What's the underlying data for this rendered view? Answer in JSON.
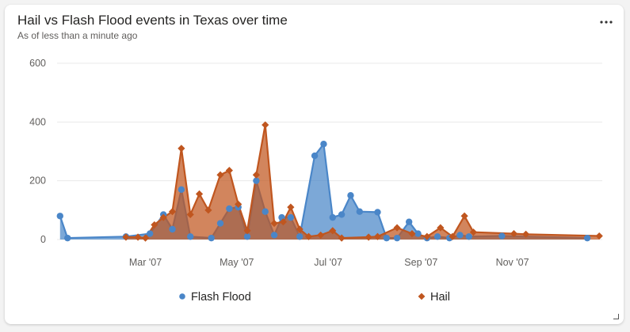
{
  "card": {
    "title": "Hail vs Flash Flood events in Texas over time",
    "subtitle": "As of less than a minute ago",
    "more_icon": "more-horizontal-icon",
    "resize_icon": "resize-handle-icon"
  },
  "chart_data": {
    "type": "area",
    "title": "Hail vs Flash Flood events in Texas over time",
    "xlabel": "",
    "ylabel": "",
    "ylim": [
      0,
      600
    ],
    "yticks": [
      "0",
      "200",
      "400",
      "600"
    ],
    "xlim": [
      "2007-01-01",
      "2007-12-31"
    ],
    "xticks": [
      {
        "label": "Mar '07",
        "date": "2007-03-01"
      },
      {
        "label": "May '07",
        "date": "2007-05-01"
      },
      {
        "label": "Jul '07",
        "date": "2007-07-01"
      },
      {
        "label": "Sep '07",
        "date": "2007-09-01"
      },
      {
        "label": "Nov '07",
        "date": "2007-11-01"
      }
    ],
    "grid": true,
    "legend_position": "bottom",
    "series": [
      {
        "name": "Flash Flood",
        "color": "#4a86c8",
        "marker": "circle",
        "points": [
          [
            "2007-01-03",
            80
          ],
          [
            "2007-01-08",
            5
          ],
          [
            "2007-02-16",
            10
          ],
          [
            "2007-03-04",
            20
          ],
          [
            "2007-03-13",
            85
          ],
          [
            "2007-03-19",
            35
          ],
          [
            "2007-03-25",
            170
          ],
          [
            "2007-03-31",
            10
          ],
          [
            "2007-04-14",
            5
          ],
          [
            "2007-04-20",
            55
          ],
          [
            "2007-04-26",
            105
          ],
          [
            "2007-05-02",
            110
          ],
          [
            "2007-05-08",
            10
          ],
          [
            "2007-05-14",
            200
          ],
          [
            "2007-05-20",
            95
          ],
          [
            "2007-05-26",
            15
          ],
          [
            "2007-05-31",
            75
          ],
          [
            "2007-06-06",
            75
          ],
          [
            "2007-06-12",
            10
          ],
          [
            "2007-06-22",
            285
          ],
          [
            "2007-06-28",
            325
          ],
          [
            "2007-07-04",
            75
          ],
          [
            "2007-07-10",
            85
          ],
          [
            "2007-07-16",
            150
          ],
          [
            "2007-07-22",
            95
          ],
          [
            "2007-08-03",
            93
          ],
          [
            "2007-08-09",
            5
          ],
          [
            "2007-08-16",
            5
          ],
          [
            "2007-08-24",
            60
          ],
          [
            "2007-08-30",
            20
          ],
          [
            "2007-09-05",
            5
          ],
          [
            "2007-09-12",
            10
          ],
          [
            "2007-09-20",
            5
          ],
          [
            "2007-09-27",
            15
          ],
          [
            "2007-10-03",
            10
          ],
          [
            "2007-10-25",
            12
          ],
          [
            "2007-12-21",
            5
          ]
        ]
      },
      {
        "name": "Hail",
        "color": "#c0561f",
        "marker": "diamond",
        "points": [
          [
            "2007-02-16",
            8
          ],
          [
            "2007-02-24",
            8
          ],
          [
            "2007-03-01",
            5
          ],
          [
            "2007-03-07",
            50
          ],
          [
            "2007-03-13",
            75
          ],
          [
            "2007-03-19",
            95
          ],
          [
            "2007-03-25",
            310
          ],
          [
            "2007-03-31",
            85
          ],
          [
            "2007-04-06",
            155
          ],
          [
            "2007-04-12",
            100
          ],
          [
            "2007-04-20",
            220
          ],
          [
            "2007-04-26",
            235
          ],
          [
            "2007-05-02",
            120
          ],
          [
            "2007-05-08",
            30
          ],
          [
            "2007-05-14",
            220
          ],
          [
            "2007-05-20",
            390
          ],
          [
            "2007-05-26",
            55
          ],
          [
            "2007-06-01",
            60
          ],
          [
            "2007-06-06",
            110
          ],
          [
            "2007-06-12",
            35
          ],
          [
            "2007-06-18",
            10
          ],
          [
            "2007-06-26",
            15
          ],
          [
            "2007-07-04",
            30
          ],
          [
            "2007-07-10",
            5
          ],
          [
            "2007-07-28",
            8
          ],
          [
            "2007-08-03",
            10
          ],
          [
            "2007-08-16",
            40
          ],
          [
            "2007-08-26",
            20
          ],
          [
            "2007-09-05",
            10
          ],
          [
            "2007-09-14",
            40
          ],
          [
            "2007-09-22",
            10
          ],
          [
            "2007-09-30",
            80
          ],
          [
            "2007-10-06",
            25
          ],
          [
            "2007-11-02",
            20
          ],
          [
            "2007-11-10",
            18
          ],
          [
            "2007-12-29",
            12
          ]
        ]
      }
    ]
  }
}
